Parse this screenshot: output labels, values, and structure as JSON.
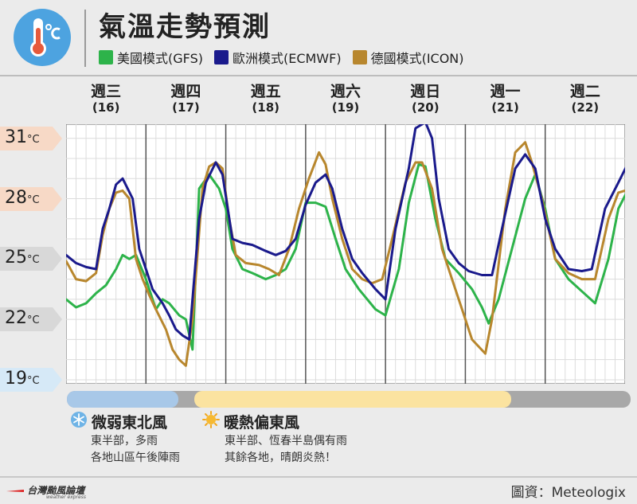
{
  "title": "氣溫走勢預測",
  "header_icon": "thermometer-celsius-icon",
  "legend": [
    {
      "label": "美國模式(GFS)",
      "color": "#2db34a"
    },
    {
      "label": "歐洲模式(ECMWF)",
      "color": "#1a1a8c"
    },
    {
      "label": "德國模式(ICON)",
      "color": "#b8872e"
    }
  ],
  "chart_data": {
    "type": "line",
    "title": "氣溫走勢預測",
    "xlabel": "",
    "ylabel": "",
    "ylim": [
      18.8,
      31.7
    ],
    "y_ticks": [
      {
        "value": 31,
        "label": "31"
      },
      {
        "value": 28,
        "label": "28"
      },
      {
        "value": 25,
        "label": "25"
      },
      {
        "value": 22,
        "label": "22"
      },
      {
        "value": 19,
        "label": "19"
      }
    ],
    "y_unit": "°C",
    "days": [
      {
        "name": "週三",
        "date": "(16)"
      },
      {
        "name": "週四",
        "date": "(17)"
      },
      {
        "name": "週五",
        "date": "(18)"
      },
      {
        "name": "週六",
        "date": "(19)"
      },
      {
        "name": "週日",
        "date": "(20)"
      },
      {
        "name": "週一",
        "date": "(21)"
      },
      {
        "name": "週二",
        "date": "(22)"
      }
    ],
    "x_unit": "hours from start of 週三",
    "grid": true,
    "series": [
      {
        "name": "美國模式(GFS)",
        "color": "#2db34a",
        "points": [
          [
            0,
            23.0
          ],
          [
            3,
            22.6
          ],
          [
            6,
            22.8
          ],
          [
            9,
            23.3
          ],
          [
            12,
            23.7
          ],
          [
            15,
            24.5
          ],
          [
            17,
            25.2
          ],
          [
            19,
            25.0
          ],
          [
            21,
            25.2
          ],
          [
            24,
            24.0
          ],
          [
            27,
            22.5
          ],
          [
            29,
            23.0
          ],
          [
            31,
            22.8
          ],
          [
            34,
            22.2
          ],
          [
            36,
            22.0
          ],
          [
            38,
            20.5
          ],
          [
            40,
            28.5
          ],
          [
            43,
            29.2
          ],
          [
            46,
            28.5
          ],
          [
            48,
            27.5
          ],
          [
            50,
            25.5
          ],
          [
            53,
            24.5
          ],
          [
            56,
            24.3
          ],
          [
            60,
            24.0
          ],
          [
            63,
            24.2
          ],
          [
            66,
            24.5
          ],
          [
            69,
            25.5
          ],
          [
            72,
            27.8
          ],
          [
            75,
            27.8
          ],
          [
            78,
            27.6
          ],
          [
            81,
            26.0
          ],
          [
            84,
            24.5
          ],
          [
            88,
            23.5
          ],
          [
            93,
            22.5
          ],
          [
            96,
            22.2
          ],
          [
            100,
            24.5
          ],
          [
            103,
            27.8
          ],
          [
            106,
            29.7
          ],
          [
            108,
            29.6
          ],
          [
            111,
            27.0
          ],
          [
            114,
            25.0
          ],
          [
            118,
            24.3
          ],
          [
            122,
            23.5
          ],
          [
            125,
            22.6
          ],
          [
            127,
            21.8
          ],
          [
            130,
            23.0
          ],
          [
            134,
            25.5
          ],
          [
            138,
            28.0
          ],
          [
            141,
            29.2
          ],
          [
            144,
            27.5
          ],
          [
            147,
            25.0
          ],
          [
            151,
            24.0
          ],
          [
            155,
            23.4
          ],
          [
            159,
            22.8
          ],
          [
            163,
            25.0
          ],
          [
            166,
            27.5
          ],
          [
            170,
            28.8
          ],
          [
            174,
            28.0
          ],
          [
            177,
            25.0
          ],
          [
            181,
            22.5
          ],
          [
            185,
            21.5
          ],
          [
            188,
            21.2
          ],
          [
            190,
            21.0
          ],
          [
            194,
            26.0
          ],
          [
            198,
            28.5
          ],
          [
            201,
            29.0
          ],
          [
            203,
            28.0
          ],
          [
            207,
            24.0
          ],
          [
            210,
            22.6
          ],
          [
            212,
            21.8
          ]
        ]
      },
      {
        "name": "歐洲模式(ECMWF)",
        "color": "#1a1a8c",
        "points": [
          [
            0,
            25.2
          ],
          [
            3,
            24.8
          ],
          [
            6,
            24.6
          ],
          [
            9,
            24.5
          ],
          [
            11,
            26.5
          ],
          [
            13,
            27.5
          ],
          [
            15,
            28.7
          ],
          [
            17,
            29.0
          ],
          [
            20,
            28.0
          ],
          [
            22,
            25.5
          ],
          [
            24,
            24.5
          ],
          [
            26,
            23.5
          ],
          [
            29,
            22.8
          ],
          [
            31,
            22.2
          ],
          [
            33,
            21.5
          ],
          [
            35,
            21.2
          ],
          [
            37,
            21.0
          ],
          [
            40,
            27.0
          ],
          [
            42,
            28.8
          ],
          [
            45,
            29.8
          ],
          [
            47,
            29.2
          ],
          [
            50,
            26.0
          ],
          [
            53,
            25.8
          ],
          [
            56,
            25.7
          ],
          [
            60,
            25.4
          ],
          [
            63,
            25.2
          ],
          [
            66,
            25.4
          ],
          [
            69,
            26.0
          ],
          [
            72,
            27.7
          ],
          [
            75,
            28.8
          ],
          [
            78,
            29.2
          ],
          [
            80,
            28.5
          ],
          [
            83,
            26.5
          ],
          [
            86,
            25.0
          ],
          [
            89,
            24.3
          ],
          [
            93,
            23.5
          ],
          [
            96,
            23.0
          ],
          [
            99,
            26.5
          ],
          [
            103,
            29.5
          ],
          [
            105,
            31.5
          ],
          [
            108,
            31.8
          ],
          [
            110,
            31.0
          ],
          [
            112,
            28.0
          ],
          [
            115,
            25.5
          ],
          [
            118,
            24.8
          ],
          [
            121,
            24.4
          ],
          [
            125,
            24.2
          ],
          [
            128,
            24.2
          ],
          [
            131,
            26.5
          ],
          [
            135,
            29.5
          ],
          [
            138,
            30.2
          ],
          [
            141,
            29.5
          ],
          [
            144,
            27.0
          ],
          [
            147,
            25.5
          ],
          [
            151,
            24.5
          ],
          [
            155,
            24.4
          ],
          [
            158,
            24.5
          ],
          [
            162,
            27.5
          ],
          [
            166,
            28.8
          ],
          [
            169,
            29.8
          ],
          [
            172,
            28.8
          ],
          [
            175,
            27.0
          ],
          [
            178,
            25.0
          ],
          [
            181,
            24.0
          ],
          [
            184,
            23.0
          ],
          [
            187,
            22.6
          ],
          [
            190,
            24.0
          ],
          [
            194,
            26.7
          ],
          [
            198,
            28.0
          ],
          [
            200,
            29.0
          ],
          [
            203,
            28.0
          ],
          [
            206,
            25.4
          ],
          [
            209,
            24.8
          ],
          [
            212,
            24.2
          ]
        ]
      },
      {
        "name": "德國模式(ICON)",
        "color": "#b8872e",
        "points": [
          [
            0,
            24.9
          ],
          [
            3,
            24.0
          ],
          [
            6,
            23.9
          ],
          [
            9,
            24.3
          ],
          [
            11,
            26.2
          ],
          [
            13,
            27.5
          ],
          [
            15,
            28.3
          ],
          [
            17,
            28.4
          ],
          [
            19,
            28.0
          ],
          [
            21,
            25.0
          ],
          [
            23,
            24.0
          ],
          [
            25,
            23.2
          ],
          [
            27,
            22.5
          ],
          [
            30,
            21.5
          ],
          [
            32,
            20.5
          ],
          [
            34,
            20.0
          ],
          [
            36,
            19.7
          ],
          [
            38,
            22.0
          ],
          [
            41,
            28.5
          ],
          [
            43,
            29.6
          ],
          [
            45,
            29.8
          ],
          [
            47,
            29.5
          ],
          [
            49,
            27.0
          ],
          [
            51,
            25.2
          ],
          [
            54,
            24.8
          ],
          [
            58,
            24.7
          ],
          [
            61,
            24.5
          ],
          [
            64,
            24.2
          ],
          [
            67,
            25.5
          ],
          [
            70,
            27.5
          ],
          [
            73,
            29.0
          ],
          [
            76,
            30.3
          ],
          [
            78,
            29.7
          ],
          [
            80,
            28.0
          ],
          [
            83,
            26.0
          ],
          [
            86,
            24.5
          ],
          [
            89,
            24.0
          ],
          [
            92,
            23.8
          ],
          [
            95,
            24.0
          ],
          [
            98,
            26.0
          ],
          [
            102,
            28.8
          ],
          [
            105,
            29.8
          ],
          [
            107,
            29.8
          ],
          [
            110,
            28.5
          ],
          [
            113,
            25.5
          ],
          [
            116,
            24.0
          ],
          [
            119,
            22.5
          ],
          [
            122,
            21.0
          ],
          [
            126,
            20.3
          ],
          [
            128,
            22.0
          ],
          [
            132,
            27.5
          ],
          [
            135,
            30.3
          ],
          [
            138,
            30.8
          ],
          [
            140,
            29.8
          ],
          [
            143,
            28.0
          ],
          [
            147,
            25.0
          ],
          [
            151,
            24.3
          ],
          [
            155,
            24.0
          ],
          [
            159,
            24.0
          ],
          [
            163,
            27.0
          ],
          [
            166,
            28.3
          ],
          [
            170,
            28.5
          ],
          [
            173,
            27.0
          ],
          [
            176,
            24.5
          ],
          [
            180,
            22.5
          ],
          [
            184,
            21.5
          ],
          [
            187,
            20.5
          ],
          [
            189,
            19.8
          ],
          [
            191,
            19.5
          ],
          [
            193,
            23.0
          ],
          [
            196,
            28.5
          ],
          [
            199,
            29.5
          ],
          [
            201,
            29.8
          ],
          [
            203,
            29.0
          ],
          [
            206,
            26.0
          ],
          [
            209,
            23.5
          ]
        ]
      }
    ]
  },
  "wind": [
    {
      "icon": "snowflake-icon",
      "title": "微弱東北風",
      "lines": [
        "東半部，多雨",
        "各地山區午後陣雨"
      ]
    },
    {
      "icon": "sun-icon",
      "title": "暖熱偏東風",
      "lines": [
        "東半部、恆春半島偶有雨",
        "其餘各地，晴朗炎熱！"
      ]
    }
  ],
  "footer": {
    "brand": "台灣颱風論壇",
    "brand_sub": "weather express",
    "credit": "圖資：Meteologix"
  },
  "label_colors": {
    "warm": "#f7d9c6",
    "neutral": "#d8d8d8",
    "cool": "#d6e9f7"
  }
}
